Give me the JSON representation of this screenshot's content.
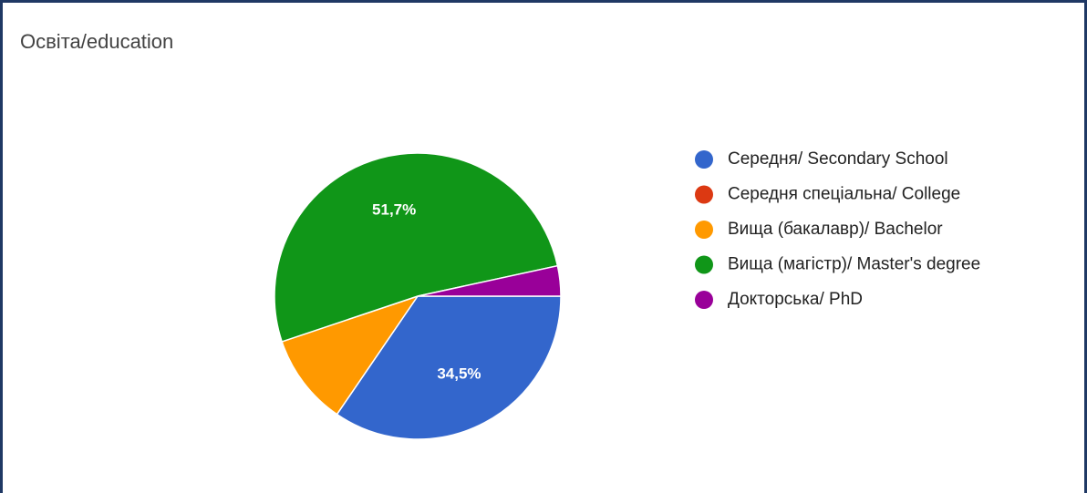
{
  "chart_data": {
    "type": "pie",
    "title": "Освіта/education",
    "categories": [
      "Середня/ Secondary School",
      "Середня спеціальна/ College",
      "Вища (бакалавр)/ Bachelor",
      "Вища (магістр)/ Master's degree",
      "Докторська/ PhD"
    ],
    "values": [
      34.5,
      0,
      10.3,
      51.7,
      3.4
    ],
    "value_labels": [
      "34,5%",
      null,
      null,
      "51,7%",
      null
    ],
    "colors": [
      "#3366cc",
      "#dc3912",
      "#ff9900",
      "#109618",
      "#990099"
    ],
    "legend": "right"
  }
}
